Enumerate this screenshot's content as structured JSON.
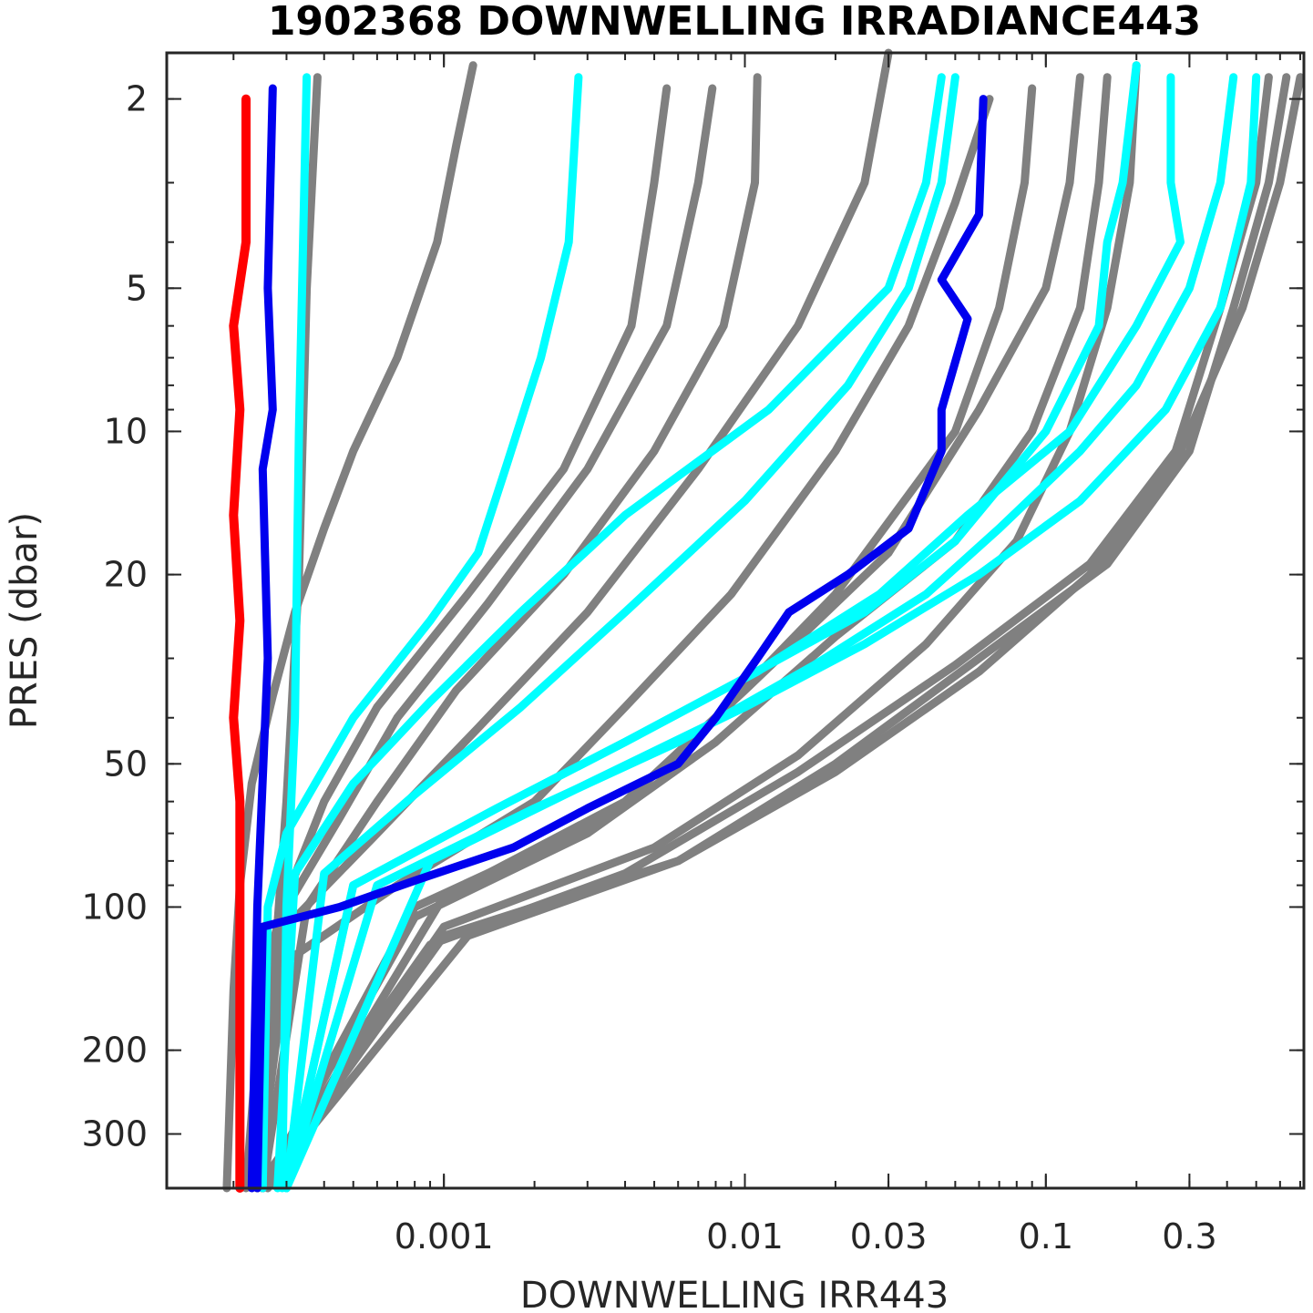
{
  "chart_data": {
    "type": "line",
    "title": "1902368  DOWNWELLING IRRADIANCE443",
    "xlabel": "DOWNWELLING IRR443",
    "ylabel": "PRES (dbar)",
    "x_scale": "log",
    "y_scale": "log",
    "y_reversed": true,
    "xlim": [
      0.00012,
      0.72
    ],
    "ylim": [
      1.6,
      390
    ],
    "x_ticks": [
      {
        "value": 0.001,
        "label": "0.001"
      },
      {
        "value": 0.01,
        "label": "0.01"
      },
      {
        "value": 0.03,
        "label": "0.03"
      },
      {
        "value": 0.1,
        "label": "0.1"
      },
      {
        "value": 0.3,
        "label": "0.3"
      }
    ],
    "y_ticks": [
      {
        "value": 2,
        "label": "2"
      },
      {
        "value": 5,
        "label": "5"
      },
      {
        "value": 10,
        "label": "10"
      },
      {
        "value": 20,
        "label": "20"
      },
      {
        "value": 50,
        "label": "50"
      },
      {
        "value": 100,
        "label": "100"
      },
      {
        "value": 200,
        "label": "200"
      },
      {
        "value": 300,
        "label": "300"
      }
    ],
    "grid": false,
    "colors": {
      "older": "#808080",
      "recent": "#00ffff",
      "previous": "#0000ee",
      "latest": "#ff0000"
    },
    "series": [
      {
        "group": "older",
        "points": [
          [
            0.00125,
            1.7
          ],
          [
            0.0011,
            2.5
          ],
          [
            0.00095,
            4
          ],
          [
            0.0007,
            7
          ],
          [
            0.0005,
            11
          ],
          [
            0.0004,
            16
          ],
          [
            0.00032,
            24
          ],
          [
            0.00027,
            36
          ],
          [
            0.00023,
            55
          ],
          [
            0.00021,
            90
          ],
          [
            0.0002,
            150
          ],
          [
            0.00019,
            390
          ]
        ]
      },
      {
        "group": "older",
        "points": [
          [
            0.0055,
            1.9
          ],
          [
            0.005,
            3
          ],
          [
            0.0042,
            6
          ],
          [
            0.0025,
            12
          ],
          [
            0.0012,
            22
          ],
          [
            0.0006,
            38
          ],
          [
            0.0004,
            60
          ],
          [
            0.0003,
            95
          ],
          [
            0.00025,
            140
          ],
          [
            0.00022,
            390
          ]
        ]
      },
      {
        "group": "older",
        "points": [
          [
            0.0078,
            1.9
          ],
          [
            0.007,
            3
          ],
          [
            0.0055,
            6
          ],
          [
            0.003,
            12
          ],
          [
            0.0014,
            23
          ],
          [
            0.0007,
            40
          ],
          [
            0.00045,
            65
          ],
          [
            0.0003,
            100
          ],
          [
            0.00024,
            390
          ]
        ]
      },
      {
        "group": "older",
        "points": [
          [
            0.011,
            1.8
          ],
          [
            0.0108,
            3
          ],
          [
            0.0085,
            6
          ],
          [
            0.005,
            11
          ],
          [
            0.0025,
            20
          ],
          [
            0.0011,
            35
          ],
          [
            0.0006,
            60
          ],
          [
            0.00035,
            100
          ],
          [
            0.00025,
            390
          ]
        ]
      },
      {
        "group": "older",
        "points": [
          [
            0.03,
            1.6
          ],
          [
            0.025,
            3
          ],
          [
            0.015,
            6
          ],
          [
            0.007,
            12
          ],
          [
            0.003,
            24
          ],
          [
            0.0013,
            42
          ],
          [
            0.0006,
            70
          ],
          [
            0.0003,
            110
          ],
          [
            0.00024,
            390
          ]
        ]
      },
      {
        "group": "older",
        "points": [
          [
            0.065,
            2
          ],
          [
            0.05,
            3.3
          ],
          [
            0.035,
            6
          ],
          [
            0.02,
            11
          ],
          [
            0.009,
            22
          ],
          [
            0.004,
            38
          ],
          [
            0.002,
            60
          ],
          [
            0.0007,
            90
          ],
          [
            0.0003,
            130
          ],
          [
            0.00024,
            390
          ]
        ]
      },
      {
        "group": "older",
        "points": [
          [
            0.09,
            1.9
          ],
          [
            0.085,
            3
          ],
          [
            0.07,
            5.5
          ],
          [
            0.05,
            10
          ],
          [
            0.02,
            22
          ],
          [
            0.008,
            40
          ],
          [
            0.0035,
            65
          ],
          [
            0.0008,
            100
          ],
          [
            0.00025,
            390
          ]
        ]
      },
      {
        "group": "older",
        "points": [
          [
            0.13,
            1.8
          ],
          [
            0.12,
            3
          ],
          [
            0.1,
            5
          ],
          [
            0.06,
            9
          ],
          [
            0.03,
            18
          ],
          [
            0.01,
            35
          ],
          [
            0.004,
            60
          ],
          [
            0.001,
            95
          ],
          [
            0.00026,
            390
          ]
        ]
      },
      {
        "group": "older",
        "points": [
          [
            0.16,
            1.8
          ],
          [
            0.15,
            3
          ],
          [
            0.13,
            5.5
          ],
          [
            0.09,
            10
          ],
          [
            0.05,
            17
          ],
          [
            0.02,
            27
          ],
          [
            0.008,
            45
          ],
          [
            0.003,
            70
          ],
          [
            0.0008,
            105
          ],
          [
            0.00025,
            390
          ]
        ]
      },
      {
        "group": "older",
        "points": [
          [
            0.2,
            1.7
          ],
          [
            0.19,
            3
          ],
          [
            0.16,
            5.5
          ],
          [
            0.12,
            10
          ],
          [
            0.08,
            17
          ],
          [
            0.04,
            28
          ],
          [
            0.015,
            48
          ],
          [
            0.005,
            75
          ],
          [
            0.001,
            110
          ],
          [
            0.00025,
            390
          ]
        ]
      },
      {
        "group": "older",
        "points": [
          [
            0.7,
            1.8
          ],
          [
            0.6,
            3
          ],
          [
            0.45,
            5.5
          ],
          [
            0.28,
            11
          ],
          [
            0.14,
            20
          ],
          [
            0.06,
            32
          ],
          [
            0.02,
            52
          ],
          [
            0.006,
            80
          ],
          [
            0.0012,
            115
          ],
          [
            0.00025,
            390
          ]
        ]
      },
      {
        "group": "older",
        "points": [
          [
            0.63,
            1.8
          ],
          [
            0.55,
            3
          ],
          [
            0.42,
            5.5
          ],
          [
            0.3,
            11
          ],
          [
            0.16,
            19
          ],
          [
            0.06,
            30
          ],
          [
            0.02,
            50
          ],
          [
            0.006,
            80
          ],
          [
            0.001,
            115
          ],
          [
            0.00025,
            390
          ]
        ]
      },
      {
        "group": "older",
        "points": [
          [
            0.55,
            1.8
          ],
          [
            0.5,
            3
          ],
          [
            0.38,
            5.5
          ],
          [
            0.27,
            11
          ],
          [
            0.14,
            19
          ],
          [
            0.05,
            31
          ],
          [
            0.015,
            52
          ],
          [
            0.004,
            85
          ],
          [
            0.0009,
            120
          ],
          [
            0.00024,
            390
          ]
        ]
      },
      {
        "group": "older",
        "points": [
          [
            0.00038,
            1.8
          ],
          [
            0.00035,
            5
          ],
          [
            0.00033,
            20
          ],
          [
            0.0003,
            60
          ],
          [
            0.00027,
            150
          ],
          [
            0.00024,
            390
          ]
        ]
      },
      {
        "group": "recent",
        "points": [
          [
            0.0028,
            1.8
          ],
          [
            0.0026,
            4
          ],
          [
            0.0021,
            7
          ],
          [
            0.0016,
            12
          ],
          [
            0.0013,
            18
          ],
          [
            0.0009,
            25
          ],
          [
            0.0005,
            40
          ],
          [
            0.0003,
            70
          ],
          [
            0.00026,
            100
          ],
          [
            0.00025,
            390
          ]
        ]
      },
      {
        "group": "recent",
        "points": [
          [
            0.045,
            1.8
          ],
          [
            0.04,
            3
          ],
          [
            0.03,
            5
          ],
          [
            0.012,
            9
          ],
          [
            0.004,
            15
          ],
          [
            0.0018,
            24
          ],
          [
            0.0009,
            37
          ],
          [
            0.0005,
            55
          ],
          [
            0.00032,
            85
          ],
          [
            0.00028,
            390
          ]
        ]
      },
      {
        "group": "recent",
        "points": [
          [
            0.05,
            1.8
          ],
          [
            0.045,
            3
          ],
          [
            0.035,
            5
          ],
          [
            0.022,
            8
          ],
          [
            0.01,
            14
          ],
          [
            0.004,
            24
          ],
          [
            0.0018,
            38
          ],
          [
            0.0008,
            58
          ],
          [
            0.0004,
            85
          ],
          [
            0.0003,
            390
          ]
        ]
      },
      {
        "group": "recent",
        "points": [
          [
            0.2,
            1.7
          ],
          [
            0.18,
            3
          ],
          [
            0.16,
            4
          ],
          [
            0.15,
            6
          ],
          [
            0.1,
            10
          ],
          [
            0.05,
            17
          ],
          [
            0.025,
            24
          ],
          [
            0.01,
            33
          ],
          [
            0.004,
            45
          ],
          [
            0.0015,
            62
          ],
          [
            0.0005,
            90
          ],
          [
            0.0003,
            390
          ]
        ]
      },
      {
        "group": "recent",
        "points": [
          [
            0.26,
            1.8
          ],
          [
            0.26,
            3
          ],
          [
            0.28,
            4
          ],
          [
            0.2,
            6
          ],
          [
            0.12,
            10
          ],
          [
            0.055,
            15
          ],
          [
            0.028,
            22
          ],
          [
            0.011,
            32
          ],
          [
            0.004,
            45
          ],
          [
            0.0015,
            62
          ],
          [
            0.0005,
            90
          ],
          [
            0.0003,
            390
          ]
        ]
      },
      {
        "group": "recent",
        "points": [
          [
            0.42,
            1.8
          ],
          [
            0.38,
            3
          ],
          [
            0.3,
            5
          ],
          [
            0.2,
            8
          ],
          [
            0.13,
            11
          ],
          [
            0.07,
            16
          ],
          [
            0.04,
            22
          ],
          [
            0.017,
            31
          ],
          [
            0.006,
            45
          ],
          [
            0.002,
            62
          ],
          [
            0.0006,
            90
          ],
          [
            0.0003,
            390
          ]
        ]
      },
      {
        "group": "recent",
        "points": [
          [
            0.5,
            1.8
          ],
          [
            0.48,
            3
          ],
          [
            0.38,
            5.5
          ],
          [
            0.25,
            9
          ],
          [
            0.13,
            14
          ],
          [
            0.06,
            20
          ],
          [
            0.025,
            28
          ],
          [
            0.01,
            38
          ],
          [
            0.003,
            55
          ],
          [
            0.0009,
            80
          ],
          [
            0.0003,
            390
          ]
        ]
      },
      {
        "group": "recent",
        "points": [
          [
            0.00035,
            1.8
          ],
          [
            0.00033,
            10
          ],
          [
            0.00032,
            40
          ],
          [
            0.0003,
            100
          ],
          [
            0.00029,
            390
          ]
        ]
      },
      {
        "group": "previous",
        "points": [
          [
            0.062,
            2
          ],
          [
            0.06,
            3.5
          ],
          [
            0.045,
            4.8
          ],
          [
            0.055,
            5.8
          ],
          [
            0.045,
            9
          ],
          [
            0.045,
            11
          ],
          [
            0.035,
            16
          ],
          [
            0.022,
            20
          ],
          [
            0.014,
            24
          ],
          [
            0.011,
            30
          ],
          [
            0.008,
            40
          ],
          [
            0.006,
            50
          ],
          [
            0.003,
            62
          ],
          [
            0.0017,
            75
          ],
          [
            0.0008,
            88
          ],
          [
            0.00045,
            100
          ],
          [
            0.00025,
            110
          ],
          [
            0.00024,
            390
          ]
        ]
      },
      {
        "group": "previous",
        "points": [
          [
            0.00027,
            1.9
          ],
          [
            0.00026,
            5
          ],
          [
            0.00027,
            9
          ],
          [
            0.00025,
            12
          ],
          [
            0.00026,
            30
          ],
          [
            0.00024,
            100
          ],
          [
            0.00023,
            390
          ]
        ]
      },
      {
        "group": "latest",
        "points": [
          [
            0.00022,
            2
          ],
          [
            0.00022,
            4
          ],
          [
            0.0002,
            6
          ],
          [
            0.00021,
            9
          ],
          [
            0.0002,
            15
          ],
          [
            0.00021,
            25
          ],
          [
            0.0002,
            40
          ],
          [
            0.00021,
            60
          ],
          [
            0.00021,
            100
          ],
          [
            0.00021,
            200
          ],
          [
            0.00021,
            390
          ]
        ]
      }
    ]
  }
}
